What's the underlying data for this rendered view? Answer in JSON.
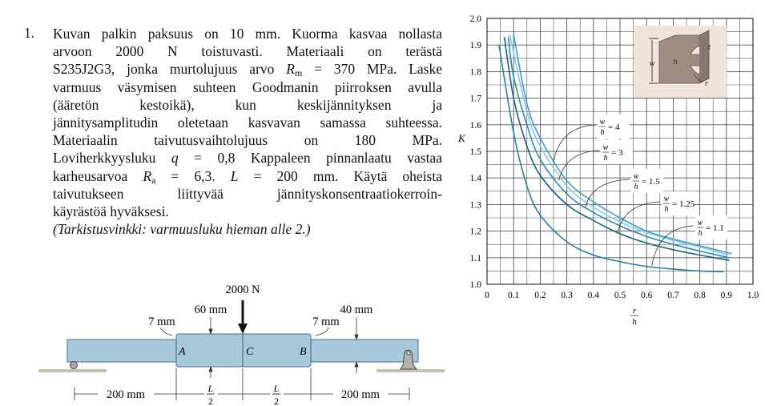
{
  "problem": {
    "number": "1.",
    "lines": [
      [
        {
          "t": "Kuvan palkin paksuus on 10 mm. Kuorma kasvaa nollasta"
        }
      ],
      [
        {
          "t": "arvoon 2000 N toistuvasti. Materiaali on terästä"
        }
      ],
      [
        {
          "t": "S235J2G3, jonka murtolujuus arvo "
        },
        {
          "t": "R",
          "i": true
        },
        {
          "t": "m",
          "sub": true
        },
        {
          "t": " = 370 MPa. Laske"
        }
      ],
      [
        {
          "t": "varmuus väsymisen suhteen Goodmanin piirroksen avulla"
        }
      ],
      [
        {
          "t": "(ääretön kestoikä), kun keskijännityksen ja"
        }
      ],
      [
        {
          "t": "jännitysamplitudin oletetaan kasvavan samassa suhteessa."
        }
      ],
      [
        {
          "t": "Materiaalin taivutusvaihtolujuus on 180 MPa."
        }
      ],
      [
        {
          "t": "Loviherkkyysluku "
        },
        {
          "t": "q",
          "i": true
        },
        {
          "t": " = 0,8 Kappaleen pinnanlaatu vastaa"
        }
      ],
      [
        {
          "t": "karheusarvoa "
        },
        {
          "t": "R",
          "i": true
        },
        {
          "t": "a",
          "sub": true
        },
        {
          "t": " = 6,3. "
        },
        {
          "t": "L",
          "i": true
        },
        {
          "t": " = 200 mm. Käytä oheista"
        }
      ],
      [
        {
          "t": "taivutukseen liittyvää jännityskonsentraatiokerroin-"
        }
      ],
      [
        {
          "t": "käyrästöä hyväksesi."
        }
      ],
      [
        {
          "t": "(Tarkistusvinkki: varmuusluku hieman alle 2.)"
        }
      ]
    ]
  },
  "beam_diagram": {
    "force": "2000 N",
    "thick_height": "60 mm",
    "thin_height": "40 mm",
    "fillet_left": "7 mm",
    "fillet_right": "7 mm",
    "point_a": "A",
    "point_b": "B",
    "point_c": "C",
    "span_left": "200 mm",
    "span_right": "200 mm",
    "half_l_num": "L",
    "half_l_den": "2",
    "colors": {
      "beam": "#a8c8dc",
      "beam_edge": "#4a7090",
      "support": "#b0b0b0"
    }
  },
  "chart_data": {
    "type": "line",
    "xlabel_num": "r",
    "xlabel_den": "h",
    "ylabel": "K",
    "xlim": [
      0,
      1.0
    ],
    "ylim": [
      1.0,
      2.0
    ],
    "x_ticks": [
      "0",
      "0.1",
      "0.2",
      "0.3",
      "0.4",
      "0.5",
      "0.6",
      "0.7",
      "0.8",
      "0.9",
      "1.0"
    ],
    "y_ticks": [
      "1.0",
      "1.1",
      "1.2",
      "1.3",
      "1.4",
      "1.5",
      "1.6",
      "1.7",
      "1.8",
      "1.9",
      "2.0"
    ],
    "grid": true,
    "inset_labels": {
      "w": "w",
      "h": "h",
      "t": "t",
      "r": "r"
    },
    "series": [
      {
        "name_num": "w",
        "name_den": "h",
        "name_val": "= 4",
        "color": "#3a9fd0",
        "points": [
          [
            0.1,
            1.94
          ],
          [
            0.15,
            1.68
          ],
          [
            0.2,
            1.55
          ],
          [
            0.3,
            1.39
          ],
          [
            0.4,
            1.31
          ],
          [
            0.5,
            1.25
          ],
          [
            0.6,
            1.2
          ],
          [
            0.7,
            1.17
          ],
          [
            0.8,
            1.145
          ],
          [
            0.92,
            1.115
          ]
        ]
      },
      {
        "name_num": "w",
        "name_den": "h",
        "name_val": "= 3",
        "color": "#8cc8e4",
        "points": [
          [
            0.085,
            1.94
          ],
          [
            0.15,
            1.65
          ],
          [
            0.2,
            1.52
          ],
          [
            0.3,
            1.37
          ],
          [
            0.4,
            1.29
          ],
          [
            0.5,
            1.235
          ],
          [
            0.6,
            1.195
          ],
          [
            0.7,
            1.165
          ],
          [
            0.8,
            1.14
          ],
          [
            0.91,
            1.11
          ]
        ]
      },
      {
        "name_num": "w",
        "name_den": "h",
        "name_val": "= 1.5",
        "color": "#2a8ab8",
        "points": [
          [
            0.08,
            1.93
          ],
          [
            0.1,
            1.78
          ],
          [
            0.15,
            1.6
          ],
          [
            0.2,
            1.47
          ],
          [
            0.3,
            1.34
          ],
          [
            0.4,
            1.27
          ],
          [
            0.5,
            1.22
          ],
          [
            0.6,
            1.18
          ],
          [
            0.7,
            1.15
          ],
          [
            0.8,
            1.125
          ],
          [
            0.91,
            1.1
          ]
        ]
      },
      {
        "name_num": "w",
        "name_den": "h",
        "name_val": "= 1.25",
        "color": "#1d5f80",
        "points": [
          [
            0.065,
            1.93
          ],
          [
            0.1,
            1.7
          ],
          [
            0.15,
            1.52
          ],
          [
            0.2,
            1.41
          ],
          [
            0.3,
            1.3
          ],
          [
            0.4,
            1.24
          ],
          [
            0.5,
            1.19
          ],
          [
            0.6,
            1.155
          ],
          [
            0.7,
            1.13
          ],
          [
            0.8,
            1.11
          ],
          [
            0.91,
            1.09
          ]
        ]
      },
      {
        "name_num": "w",
        "name_den": "h",
        "name_val": "= 1.1",
        "color": "#2a7ea6",
        "points": [
          [
            0.045,
            1.9
          ],
          [
            0.1,
            1.57
          ],
          [
            0.15,
            1.37
          ],
          [
            0.2,
            1.26
          ],
          [
            0.3,
            1.16
          ],
          [
            0.4,
            1.11
          ],
          [
            0.5,
            1.085
          ],
          [
            0.6,
            1.067
          ],
          [
            0.7,
            1.057
          ],
          [
            0.8,
            1.05
          ],
          [
            0.89,
            1.047
          ]
        ]
      }
    ]
  }
}
